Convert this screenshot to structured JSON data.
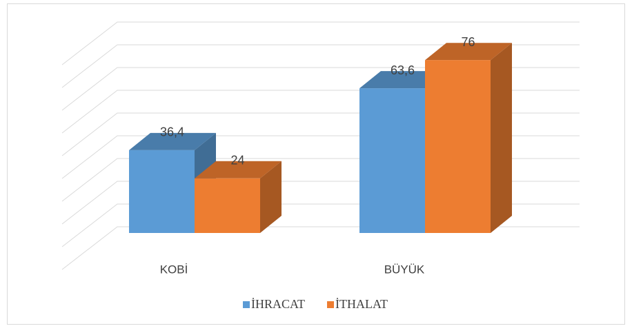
{
  "chart_data": {
    "type": "bar3d",
    "categories": [
      "KOBİ",
      "BÜYÜK"
    ],
    "series": [
      {
        "name": "İHRACAT",
        "color": "#5b9bd5",
        "values": [
          36.4,
          63.6
        ],
        "value_labels": [
          "36,4",
          "63,6"
        ]
      },
      {
        "name": "İTHALAT",
        "color": "#ed7d31",
        "values": [
          24,
          76
        ],
        "value_labels": [
          "24",
          "76"
        ]
      }
    ],
    "ylim": [
      0,
      90
    ],
    "yticks": [
      0,
      10,
      20,
      30,
      40,
      50,
      60,
      70,
      80,
      90
    ],
    "grid": true,
    "legend": "bottom"
  }
}
